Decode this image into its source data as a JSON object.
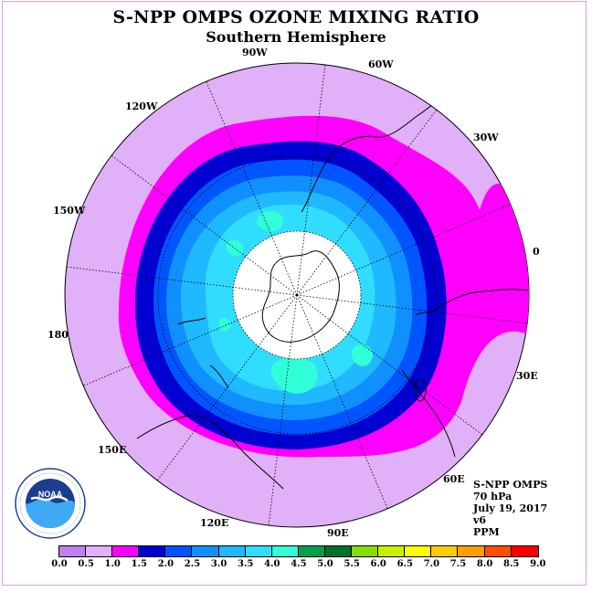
{
  "title": "S-NPP OMPS OZONE MIXING RATIO",
  "subtitle": "Southern Hemisphere",
  "longitude_labels": [
    "90W",
    "60W",
    "30W",
    "0",
    "30E",
    "60E",
    "90E",
    "120E",
    "150E",
    "180",
    "150W",
    "120W"
  ],
  "info": {
    "satellite": "S-NPP OMPS",
    "pressure_level": "70 hPa",
    "date": "July 19, 2017",
    "version": "v6",
    "units": "PPM"
  },
  "colorbar": {
    "ticks": [
      "0.0",
      "0.5",
      "1.0",
      "1.5",
      "2.0",
      "2.5",
      "3.0",
      "3.5",
      "4.0",
      "4.5",
      "5.0",
      "5.5",
      "6.0",
      "6.5",
      "7.0",
      "7.5",
      "8.0",
      "8.5",
      "9.0"
    ],
    "colors": [
      "#c080f0",
      "#e0b0f8",
      "#ff00ff",
      "#0000d0",
      "#0055ff",
      "#1090ff",
      "#20b8ff",
      "#30ddff",
      "#30ffd8",
      "#00a050",
      "#007030",
      "#88dd00",
      "#ccee00",
      "#ffff00",
      "#ffcc00",
      "#ffa000",
      "#ff5000",
      "#ff0000",
      "#996633"
    ]
  },
  "map_colors": {
    "background_disk": "#e0b0f8",
    "band_1_0": "#ff00ff",
    "band_1_5": "#0000d0",
    "band_2_0": "#0055ff",
    "band_2_5": "#1090ff",
    "band_3_0": "#20b8ff",
    "band_3_5": "#30ddff",
    "band_4_0": "#30ffd8",
    "polar_hole": "#ffffff"
  },
  "logo_text": "NOAA"
}
